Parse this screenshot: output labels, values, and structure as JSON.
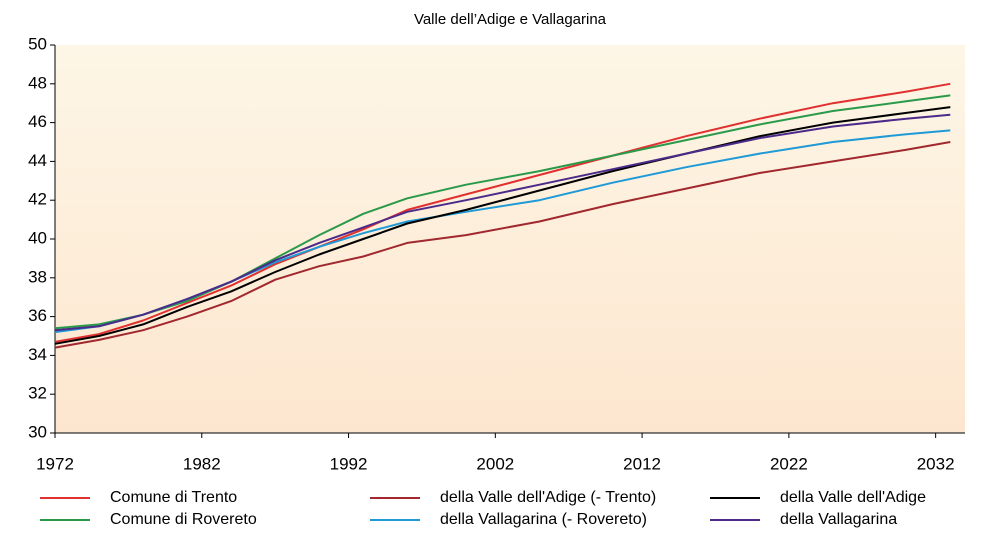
{
  "chart_data": {
    "type": "line",
    "title": "Valle dell’Adige e Vallagarina",
    "x": [
      1972,
      1975,
      1978,
      1981,
      1984,
      1987,
      1990,
      1993,
      1996,
      2000,
      2005,
      2010,
      2015,
      2020,
      2025,
      2030,
      2033
    ],
    "series": [
      {
        "name": "Comune di Trento",
        "color": "#e03030",
        "values": [
          34.7,
          35.1,
          35.8,
          36.7,
          37.6,
          38.7,
          39.6,
          40.5,
          41.5,
          42.3,
          43.3,
          44.3,
          45.3,
          46.2,
          47.0,
          47.6,
          48.0
        ]
      },
      {
        "name": "Comune di Rovereto",
        "color": "#2a9a4a",
        "values": [
          35.4,
          35.6,
          36.1,
          36.8,
          37.8,
          39.0,
          40.2,
          41.3,
          42.1,
          42.8,
          43.5,
          44.3,
          45.1,
          45.9,
          46.6,
          47.1,
          47.4
        ]
      },
      {
        "name": "della Valle dell'Adige (- Trento)",
        "color": "#a0282e",
        "values": [
          34.4,
          34.8,
          35.3,
          36.0,
          36.8,
          37.9,
          38.6,
          39.1,
          39.8,
          40.2,
          40.9,
          41.8,
          42.6,
          43.4,
          44.0,
          44.6,
          45.0
        ]
      },
      {
        "name": "della Vallagarina (- Rovereto)",
        "color": "#1f9ad6",
        "values": [
          35.2,
          35.5,
          36.1,
          36.9,
          37.8,
          38.8,
          39.6,
          40.3,
          40.9,
          41.4,
          42.0,
          42.9,
          43.7,
          44.4,
          45.0,
          45.4,
          45.6
        ]
      },
      {
        "name": "della Valle dell'Adige",
        "color": "#000000",
        "values": [
          34.6,
          35.0,
          35.6,
          36.5,
          37.3,
          38.3,
          39.2,
          40.0,
          40.8,
          41.5,
          42.5,
          43.5,
          44.4,
          45.3,
          46.0,
          46.5,
          46.8
        ]
      },
      {
        "name": "della Vallagarina",
        "color": "#4b2a8a",
        "values": [
          35.3,
          35.5,
          36.1,
          36.9,
          37.8,
          38.9,
          39.8,
          40.6,
          41.4,
          42.0,
          42.8,
          43.6,
          44.4,
          45.2,
          45.8,
          46.2,
          46.4
        ]
      }
    ],
    "xlim": [
      1972,
      2034
    ],
    "xticks": [
      1972,
      1982,
      1992,
      2002,
      2012,
      2022,
      2032
    ],
    "ylim": [
      30,
      50
    ],
    "yticks": [
      30,
      32,
      34,
      36,
      38,
      40,
      42,
      44,
      46,
      48,
      50
    ]
  }
}
